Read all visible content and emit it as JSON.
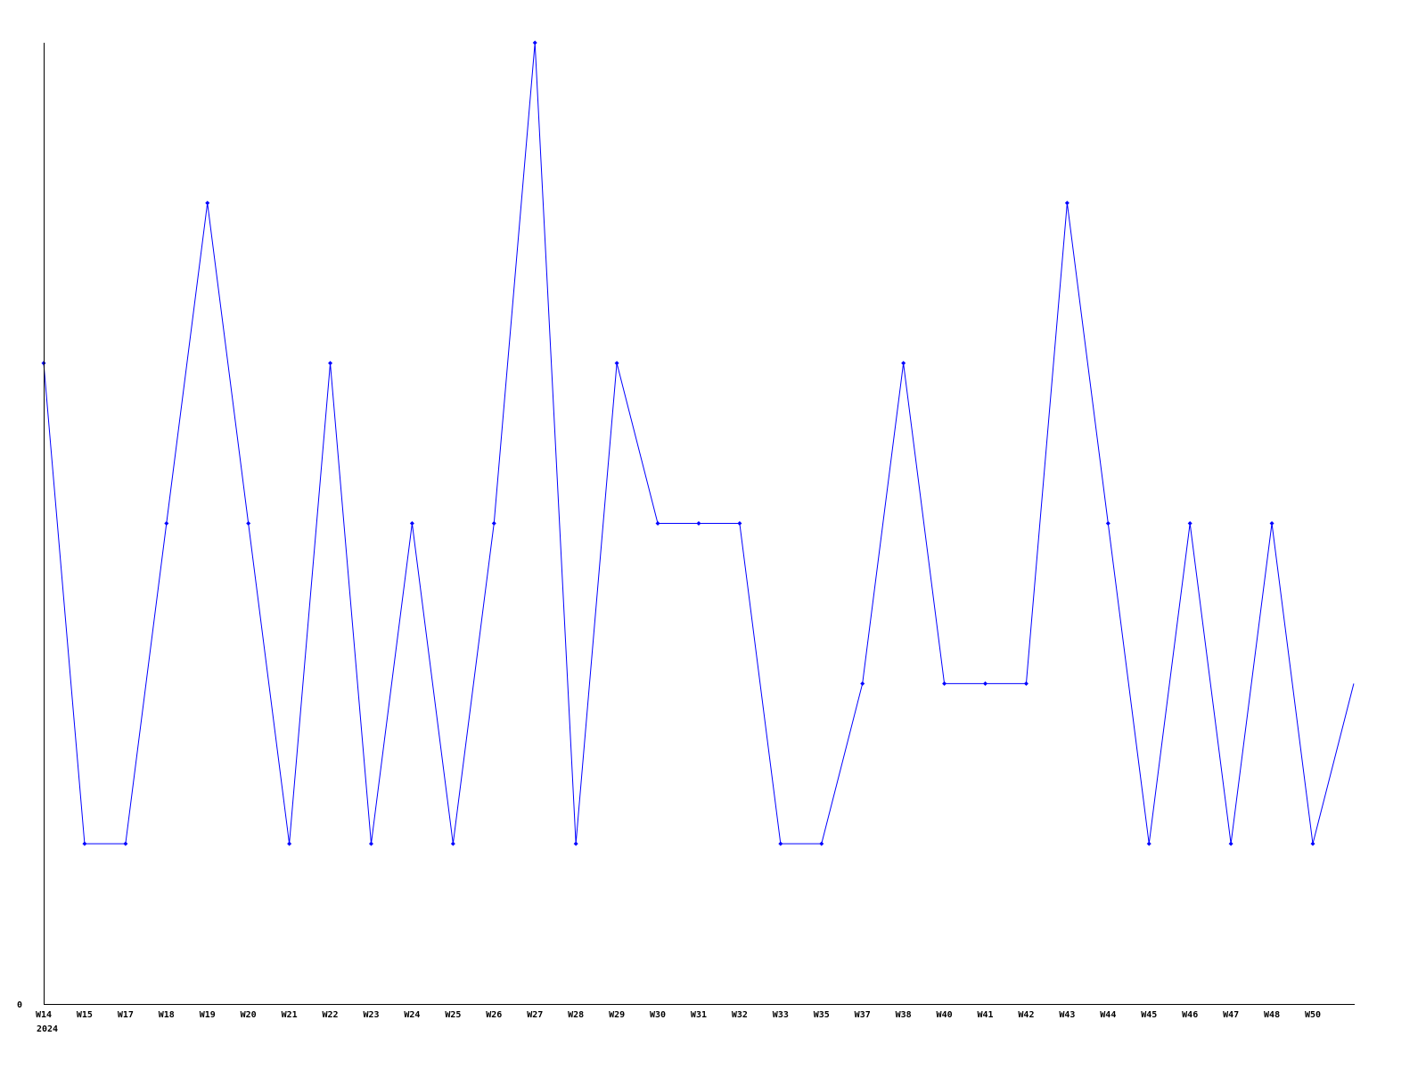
{
  "chart_data": {
    "type": "line",
    "title": "",
    "xlabel": "",
    "ylabel": "",
    "year_label": "2024",
    "y_tick_labels": [
      "0"
    ],
    "ylim": [
      0,
      6
    ],
    "grid": false,
    "line_color": "#0000ff",
    "categories": [
      "W14",
      "W15",
      "W17",
      "W18",
      "W19",
      "W20",
      "W21",
      "W22",
      "W23",
      "W24",
      "W25",
      "W26",
      "W27",
      "W28",
      "W29",
      "W30",
      "W31",
      "W32",
      "W33",
      "W35",
      "W37",
      "W38",
      "W40",
      "W41",
      "W42",
      "W43",
      "W44",
      "W45",
      "W46",
      "W47",
      "W48",
      "W50",
      ""
    ],
    "values": [
      4,
      1,
      1,
      3,
      5,
      3,
      1,
      4,
      1,
      3,
      1,
      3,
      6,
      1,
      4,
      3,
      3,
      3,
      1,
      1,
      2,
      4,
      2,
      2,
      2,
      5,
      3,
      1,
      3,
      1,
      3,
      1,
      2
    ]
  }
}
